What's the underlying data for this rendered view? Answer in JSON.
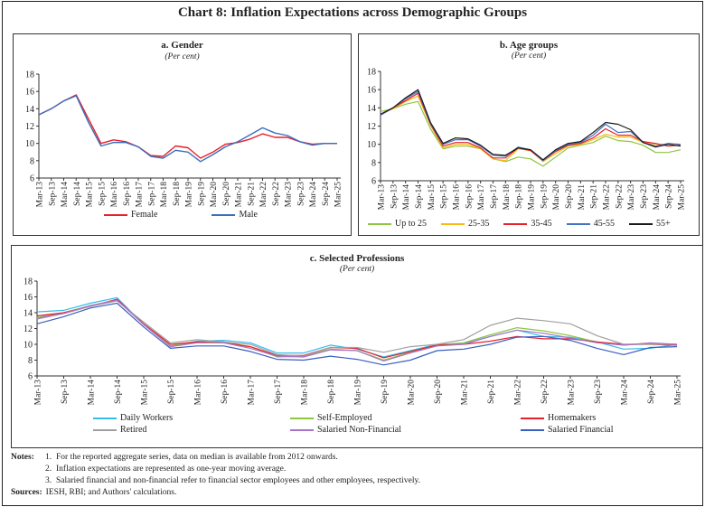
{
  "title": "Chart 8: Inflation Expectations across Demographic Groups",
  "colors": {
    "female": "#e8202a",
    "male": "#3a6ebf",
    "up25": "#8dc63f",
    "a2535": "#fdb913",
    "a3545": "#e8202a",
    "a4555": "#4472c4",
    "a55": "#1a1a1a",
    "daily": "#33bdef",
    "self": "#8dc63f",
    "home": "#e8202a",
    "retired": "#a0a0a0",
    "salnf": "#a873c9",
    "salf": "#3a5fc0"
  },
  "chart_data": [
    {
      "type": "line",
      "title": "a. Gender",
      "subtitle": "(Per cent)",
      "ylim": [
        6,
        18
      ],
      "yticks": [
        6,
        8,
        10,
        12,
        14,
        16,
        18
      ],
      "grid": false,
      "legend": "bottom",
      "x": [
        "Mar-13",
        "Sep-13",
        "Mar-14",
        "Sep-14",
        "Mar-15",
        "Sep-15",
        "Mar-16",
        "Sep-16",
        "Mar-17",
        "Sep-17",
        "Mar-18",
        "Sep-18",
        "Mar-19",
        "Sep-19",
        "Mar-20",
        "Sep-20",
        "Mar-21",
        "Sep-21",
        "Mar-22",
        "Sep-22",
        "Mar-23",
        "Sep-23",
        "Mar-24",
        "Sep-24",
        "Mar-25"
      ],
      "series": [
        {
          "name": "Female",
          "color": "#e8202a",
          "values": [
            13.3,
            14.0,
            14.9,
            15.6,
            12.8,
            10.0,
            10.4,
            10.2,
            9.6,
            8.6,
            8.5,
            9.7,
            9.5,
            8.3,
            9.0,
            9.9,
            10.1,
            10.5,
            11.1,
            10.7,
            10.7,
            10.2,
            9.9,
            10.0,
            10.0
          ]
        },
        {
          "name": "Male",
          "color": "#3a6ebf",
          "values": [
            13.3,
            14.0,
            14.9,
            15.5,
            12.4,
            9.7,
            10.1,
            10.1,
            9.6,
            8.5,
            8.3,
            9.2,
            9.0,
            7.9,
            8.7,
            9.6,
            10.2,
            11.0,
            11.8,
            11.2,
            10.9,
            10.2,
            9.8,
            10.0,
            10.0
          ]
        }
      ]
    },
    {
      "type": "line",
      "title": "b. Age groups",
      "subtitle": "(Per cent)",
      "ylim": [
        6,
        18
      ],
      "yticks": [
        6,
        8,
        10,
        12,
        14,
        16,
        18
      ],
      "grid": false,
      "legend": "bottom",
      "x": [
        "Mar-13",
        "Sep-13",
        "Mar-14",
        "Sep-14",
        "Mar-15",
        "Sep-15",
        "Mar-16",
        "Sep-16",
        "Mar-17",
        "Sep-17",
        "Mar-18",
        "Sep-18",
        "Mar-19",
        "Sep-19",
        "Mar-20",
        "Sep-20",
        "Mar-21",
        "Sep-21",
        "Mar-22",
        "Sep-22",
        "Mar-23",
        "Sep-23",
        "Mar-24",
        "Sep-24",
        "Mar-25"
      ],
      "series": [
        {
          "name": "Up to 25",
          "color": "#8dc63f",
          "values": [
            13.6,
            13.9,
            14.4,
            14.7,
            11.7,
            9.5,
            9.8,
            9.8,
            9.5,
            8.4,
            8.1,
            8.6,
            8.4,
            7.6,
            8.6,
            9.6,
            9.9,
            10.2,
            10.9,
            10.4,
            10.3,
            9.9,
            9.1,
            9.1,
            9.4
          ]
        },
        {
          "name": "25-35",
          "color": "#fdb913",
          "values": [
            13.3,
            13.9,
            14.7,
            15.3,
            12.1,
            9.6,
            10.0,
            10.0,
            9.5,
            8.4,
            8.2,
            9.5,
            9.3,
            8.1,
            9.0,
            9.8,
            10.0,
            10.5,
            11.1,
            10.8,
            10.8,
            10.2,
            10.0,
            10.0,
            9.9
          ]
        },
        {
          "name": "35-45",
          "color": "#e8202a",
          "values": [
            13.2,
            14.0,
            14.8,
            15.6,
            12.2,
            9.8,
            10.2,
            10.2,
            9.6,
            8.5,
            8.5,
            9.6,
            9.3,
            8.2,
            9.2,
            9.9,
            10.1,
            10.7,
            11.7,
            11.0,
            11.0,
            10.3,
            10.1,
            9.8,
            9.9
          ]
        },
        {
          "name": "45-55",
          "color": "#4472c4",
          "values": [
            13.2,
            14.0,
            15.0,
            15.8,
            12.3,
            10.0,
            10.5,
            10.5,
            9.8,
            8.8,
            8.7,
            9.7,
            9.4,
            8.2,
            9.3,
            10.0,
            10.2,
            11.0,
            12.2,
            11.3,
            11.4,
            10.2,
            9.8,
            10.1,
            10.0
          ]
        },
        {
          "name": "55+",
          "color": "#1a1a1a",
          "values": [
            13.3,
            14.0,
            15.1,
            16.0,
            12.4,
            10.1,
            10.7,
            10.6,
            9.9,
            8.9,
            8.8,
            9.6,
            9.4,
            8.3,
            9.4,
            10.1,
            10.3,
            11.3,
            12.4,
            12.2,
            11.6,
            10.2,
            9.7,
            10.0,
            9.8
          ]
        }
      ]
    },
    {
      "type": "line",
      "title": "c. Selected Professions",
      "subtitle": "(Per cent)",
      "ylim": [
        6,
        18
      ],
      "yticks": [
        6,
        8,
        10,
        12,
        14,
        16,
        18
      ],
      "grid": false,
      "legend": "bottom",
      "x": [
        "Mar-13",
        "Sep-13",
        "Mar-14",
        "Sep-14",
        "Mar-15",
        "Sep-15",
        "Mar-16",
        "Sep-16",
        "Mar-17",
        "Sep-17",
        "Mar-18",
        "Sep-18",
        "Mar-19",
        "Sep-19",
        "Mar-20",
        "Sep-20",
        "Mar-21",
        "Sep-21",
        "Mar-22",
        "Sep-22",
        "Mar-23",
        "Sep-23",
        "Mar-24",
        "Sep-24",
        "Mar-25"
      ],
      "series": [
        {
          "name": "Daily Workers",
          "color": "#33bdef",
          "values": [
            14.1,
            14.3,
            15.2,
            15.9,
            12.5,
            9.8,
            10.4,
            10.5,
            10.2,
            8.9,
            8.9,
            9.9,
            9.4,
            8.4,
            9.2,
            10.0,
            10.1,
            11.0,
            11.8,
            11.0,
            10.9,
            10.3,
            9.4,
            9.5,
            10.0
          ]
        },
        {
          "name": "Self-Employed",
          "color": "#8dc63f",
          "values": [
            13.4,
            14.0,
            14.9,
            15.6,
            12.5,
            9.8,
            10.3,
            10.3,
            9.7,
            8.4,
            8.5,
            9.4,
            9.2,
            8.0,
            9.0,
            9.9,
            10.2,
            11.2,
            12.1,
            11.7,
            11.1,
            10.3,
            9.9,
            10.1,
            10.0
          ]
        },
        {
          "name": "Homemakers",
          "color": "#e8202a",
          "values": [
            13.6,
            14.0,
            14.8,
            15.7,
            12.6,
            10.0,
            10.3,
            10.2,
            9.7,
            8.6,
            8.6,
            9.6,
            9.5,
            8.3,
            9.1,
            9.9,
            10.0,
            10.4,
            11.0,
            10.7,
            10.7,
            10.3,
            10.0,
            10.0,
            9.9
          ]
        },
        {
          "name": "Retired",
          "color": "#a0a0a0",
          "values": [
            13.2,
            13.9,
            14.8,
            15.5,
            12.8,
            10.2,
            10.6,
            10.3,
            10.0,
            8.7,
            8.5,
            9.6,
            9.6,
            9.0,
            9.7,
            10.0,
            10.6,
            12.4,
            13.3,
            13.0,
            12.6,
            11.1,
            10.0,
            10.0,
            10.0
          ]
        },
        {
          "name": "Salaried Non-Financial",
          "color": "#a873c9",
          "values": [
            13.3,
            13.9,
            14.9,
            15.6,
            12.5,
            9.7,
            10.2,
            10.2,
            9.5,
            8.5,
            8.4,
            9.3,
            9.2,
            7.9,
            8.9,
            9.8,
            10.0,
            11.0,
            11.8,
            11.4,
            10.8,
            10.2,
            9.9,
            10.2,
            10.0
          ]
        },
        {
          "name": "Salaried Financial",
          "color": "#3a5fc0",
          "values": [
            12.6,
            13.5,
            14.6,
            15.2,
            12.2,
            9.5,
            9.8,
            9.8,
            9.1,
            8.1,
            8.0,
            8.5,
            8.1,
            7.4,
            8.0,
            9.2,
            9.4,
            10.0,
            10.9,
            11.0,
            10.5,
            9.5,
            8.7,
            9.6,
            9.7
          ]
        }
      ]
    }
  ],
  "notes": {
    "label": "Notes:",
    "items": [
      {
        "num": "1.",
        "text": "For the reported aggregate series, data on median is available from 2012 onwards."
      },
      {
        "num": "2.",
        "text": "Inflation expectations are represented as one-year moving average."
      },
      {
        "num": "3.",
        "text": "Salaried financial and non-financial refer to financial sector employees and other employees, respectively."
      }
    ],
    "sources_label": "Sources:",
    "sources_text": "IESH, RBI; and Authors' calculations."
  }
}
